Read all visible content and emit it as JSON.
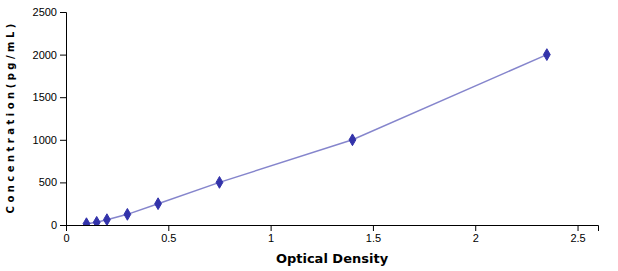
{
  "chart_data": {
    "type": "line",
    "xlabel": "Optical Density",
    "ylabel": "C o n c e n t r a t i o n ( p g / m L )",
    "x": [
      0.1,
      0.15,
      0.2,
      0.3,
      0.45,
      0.75,
      1.4,
      2.35
    ],
    "values": [
      15.6,
      31.2,
      62.5,
      125,
      250,
      500,
      1000,
      2000
    ],
    "color": "#3333aa",
    "marker": "diamond",
    "line_style": "solid",
    "xlim": [
      0,
      2.6
    ],
    "ylim": [
      0,
      2500
    ],
    "xticks": [
      0,
      0.5,
      1,
      1.5,
      2,
      2.5
    ],
    "yticks": [
      0,
      500,
      1000,
      1500,
      2000,
      2500
    ],
    "grid": false
  }
}
